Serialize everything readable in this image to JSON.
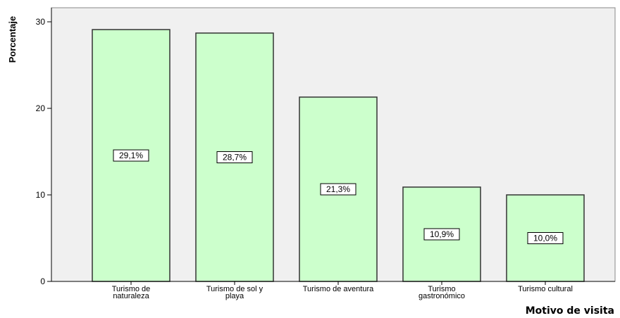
{
  "chart_data": {
    "type": "bar",
    "title": "",
    "xlabel": "Motivo de visita",
    "ylabel": "Porcentaje",
    "categories": [
      [
        "Turismo de",
        "naturaleza"
      ],
      [
        "Turismo de sol y",
        "playa"
      ],
      [
        "Turismo de aventura"
      ],
      [
        "Turismo",
        "gastronómico"
      ],
      [
        "Turismo cultural"
      ]
    ],
    "values": [
      29.1,
      28.7,
      21.3,
      10.9,
      10.0
    ],
    "data_labels": [
      "29,1%",
      "28,7%",
      "21,3%",
      "10,9%",
      "10,0%"
    ],
    "ylim": [
      0,
      30
    ],
    "yticks": [
      0,
      10,
      20,
      30
    ],
    "grid": false,
    "legend": "none",
    "colors": {
      "plot_bg": "#f0f0f0",
      "bar_fill": "#ccffcc",
      "bar_stroke": "#333333"
    }
  }
}
